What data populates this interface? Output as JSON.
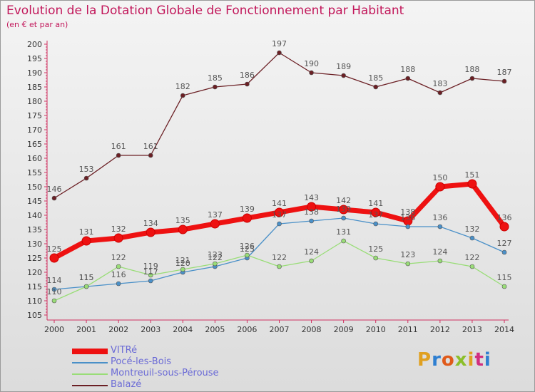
{
  "title": "Evolution de la Dotation Globale de Fonctionnement par Habitant",
  "subtitle": "(en € et par an)",
  "logo": {
    "text": "Proxiti",
    "letter_colors": [
      "#e0a020",
      "#2e7fd1",
      "#e05a1a",
      "#8bbf2a",
      "#e0a020",
      "#d12e7f",
      "#2e7fd1"
    ]
  },
  "chart_data": {
    "type": "line",
    "title": "Evolution de la Dotation Globale de Fonctionnement par Habitant",
    "subtitle": "(en € et par an)",
    "xlabel": "",
    "ylabel": "",
    "x": [
      2000,
      2001,
      2002,
      2003,
      2004,
      2005,
      2006,
      2007,
      2008,
      2009,
      2010,
      2011,
      2012,
      2013,
      2014
    ],
    "ylim": [
      105,
      200
    ],
    "yticks": [
      105,
      110,
      115,
      120,
      125,
      130,
      135,
      140,
      145,
      150,
      155,
      160,
      165,
      170,
      175,
      180,
      185,
      190,
      195,
      200
    ],
    "grid": false,
    "legend_position": "bottom-left",
    "series": [
      {
        "name": "VITRé",
        "color": "#ee1111",
        "emphasis": true,
        "values": [
          125,
          131,
          132,
          134,
          135,
          137,
          139,
          141,
          143,
          142,
          141,
          138,
          150,
          151,
          136
        ]
      },
      {
        "name": "Pocé-les-Bois",
        "color": "#4a90c8",
        "values": [
          114,
          115,
          116,
          117,
          120,
          122,
          125,
          137,
          138,
          139,
          137,
          136,
          136,
          132,
          127
        ]
      },
      {
        "name": "Montreuil-sous-Pérouse",
        "color": "#99dd77",
        "values": [
          110,
          115,
          122,
          119,
          121,
          123,
          126,
          122,
          124,
          131,
          125,
          123,
          124,
          122,
          115
        ]
      },
      {
        "name": "Balazé",
        "color": "#6b1f24",
        "values": [
          146,
          153,
          161,
          161,
          182,
          185,
          186,
          197,
          190,
          189,
          185,
          188,
          183,
          188,
          187
        ]
      }
    ]
  }
}
